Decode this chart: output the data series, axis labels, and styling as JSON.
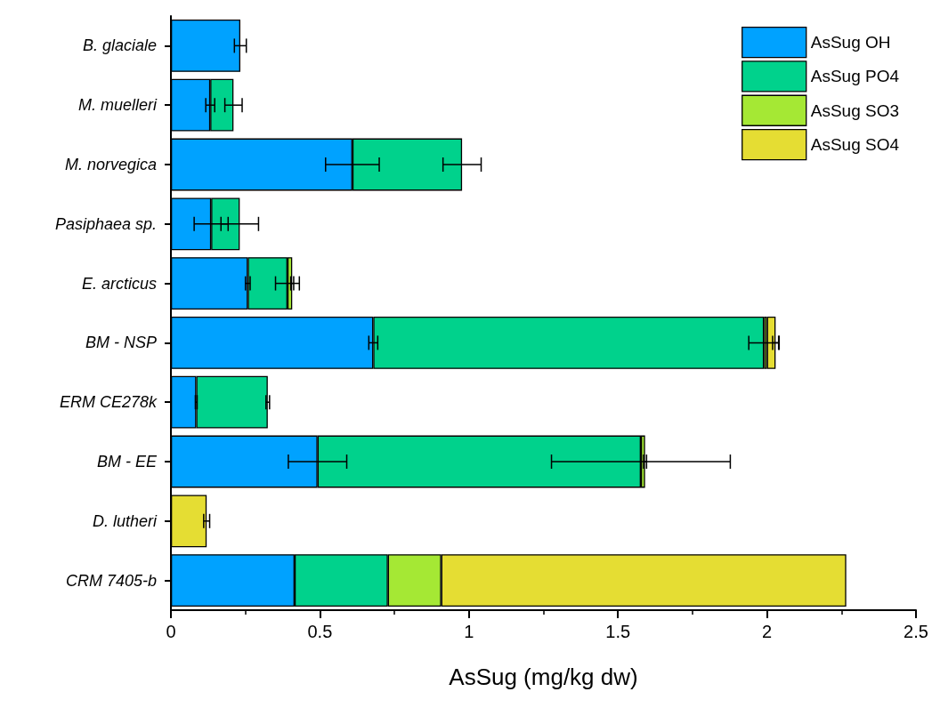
{
  "chart_data": {
    "type": "bar",
    "orientation": "horizontal",
    "stacked": true,
    "xlabel": "AsSug (mg/kg dw)",
    "categories": [
      "B. glaciale",
      "M. muelleri",
      "M. norvegica",
      "Pasiphaea sp.",
      "E. arcticus",
      "BM - NSP",
      "ERM CE278k",
      "BM - EE",
      "D. lutheri",
      "CRM 7405-b"
    ],
    "series": [
      {
        "name": "AsSug OH",
        "color": "#00a2ff",
        "values": [
          0.233,
          0.132,
          0.609,
          0.135,
          0.258,
          0.679,
          0.085,
          0.492,
          null,
          0.415
        ],
        "errors": [
          0.02,
          0.015,
          0.09,
          0.057,
          0.008,
          0.015,
          0.003,
          0.098,
          null,
          null
        ]
      },
      {
        "name": "AsSug PO4",
        "color": "#00d28c",
        "values": [
          null,
          0.078,
          0.368,
          0.096,
          0.133,
          1.311,
          0.24,
          1.085,
          null,
          0.313
        ],
        "errors": [
          null,
          0.029,
          0.064,
          0.063,
          0.04,
          0.051,
          0.006,
          0.3,
          null,
          null
        ]
      },
      {
        "name": "AsSug SO3",
        "color": "#a5e834",
        "values": [
          null,
          null,
          null,
          null,
          0.016,
          0.01,
          null,
          0.014,
          null,
          0.179
        ],
        "errors": [
          null,
          null,
          null,
          null,
          0.005,
          null,
          null,
          0.005,
          null,
          null
        ]
      },
      {
        "name": "AsSug SO4",
        "color": "#e5dd33",
        "values": [
          null,
          null,
          null,
          null,
          null,
          0.029,
          null,
          null,
          0.12,
          1.359
        ],
        "errors": [
          null,
          null,
          null,
          null,
          null,
          0.01,
          null,
          null,
          0.01,
          null
        ]
      }
    ],
    "xlim": [
      0,
      2.5
    ],
    "xticks": [
      0,
      0.5,
      1,
      1.5,
      2,
      2.5
    ],
    "grid": false,
    "legend": "top right"
  }
}
